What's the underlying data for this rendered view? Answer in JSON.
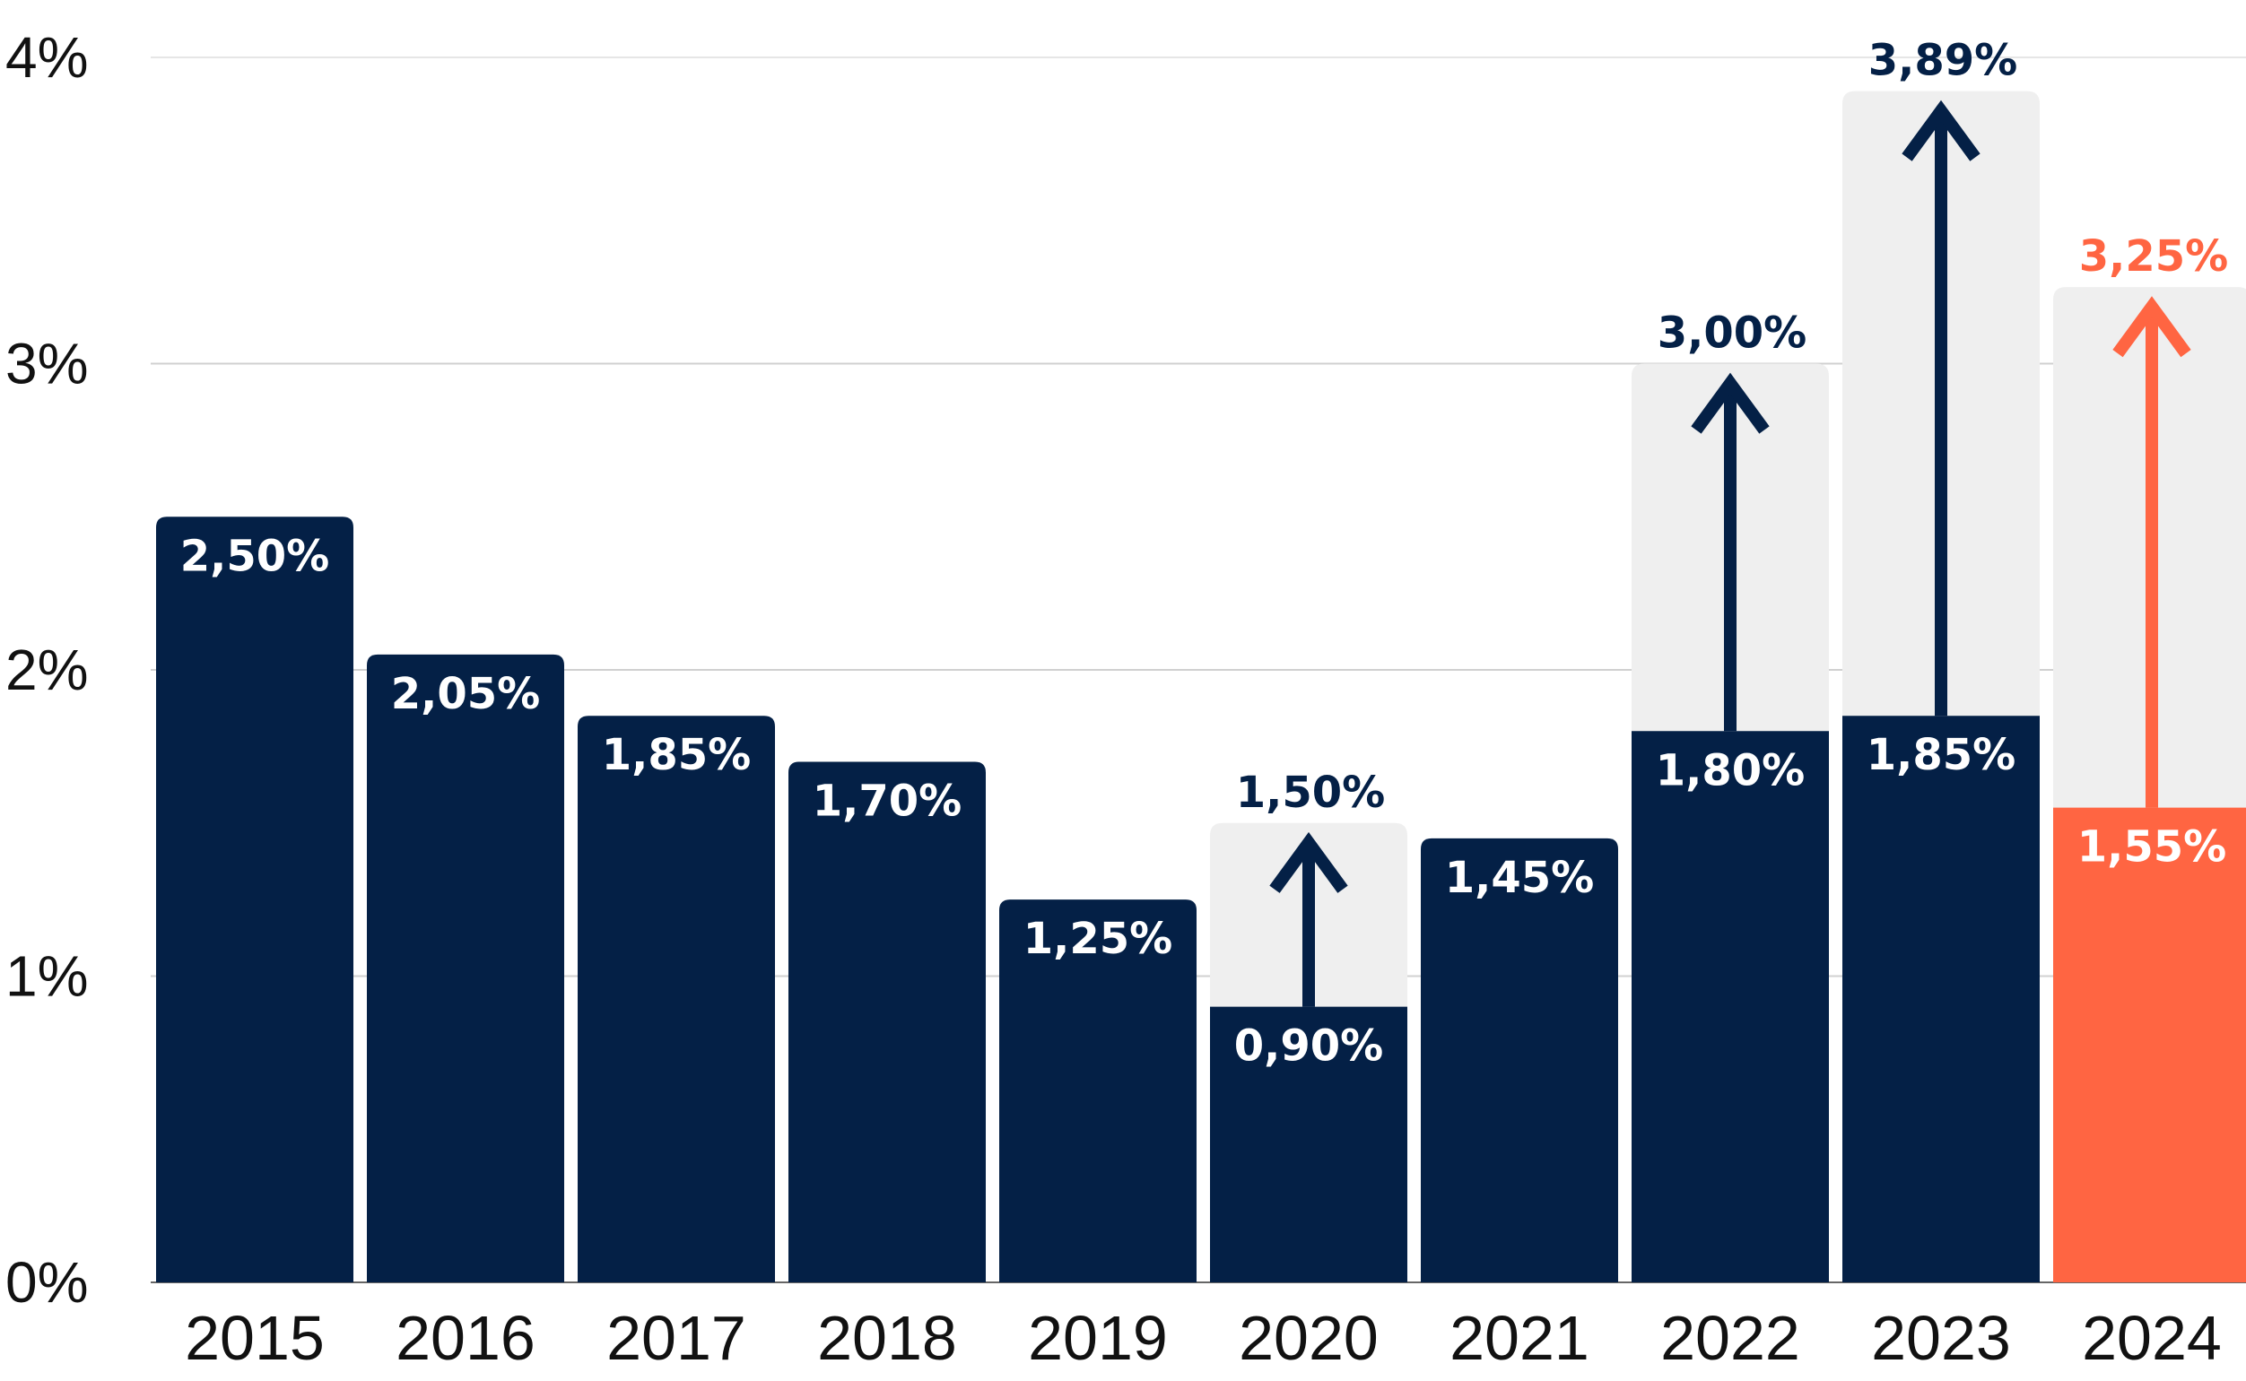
{
  "colors": {
    "bar": "#042046",
    "highlight": "#FF6542",
    "ghost": "#EFEFEF",
    "grid": "#D0D0D0"
  },
  "chart_data": {
    "type": "bar",
    "categories": [
      "2015",
      "2016",
      "2017",
      "2018",
      "2019",
      "2020",
      "2021",
      "2022",
      "2023",
      "2024"
    ],
    "values": [
      2.5,
      2.05,
      1.85,
      1.7,
      1.25,
      0.9,
      1.45,
      1.8,
      1.85,
      1.55
    ],
    "value_labels": [
      "2,50%",
      "2,05%",
      "1,85%",
      "1,70%",
      "1,25%",
      "0,90%",
      "1,45%",
      "1,80%",
      "1,85%",
      "1,55%"
    ],
    "targets": [
      null,
      null,
      null,
      null,
      null,
      1.5,
      null,
      3.0,
      3.89,
      3.25
    ],
    "target_labels": [
      null,
      null,
      null,
      null,
      null,
      "1,50%",
      null,
      "3,00%",
      "3,89%",
      "3,25%"
    ],
    "highlight_index": 9,
    "ylim": [
      0,
      4
    ],
    "yticks": [
      0,
      1,
      2,
      3,
      4
    ],
    "ytick_labels": [
      "0%",
      "1%",
      "2%",
      "3%",
      "4%"
    ],
    "grid": true,
    "title": "",
    "xlabel": "",
    "ylabel": ""
  }
}
